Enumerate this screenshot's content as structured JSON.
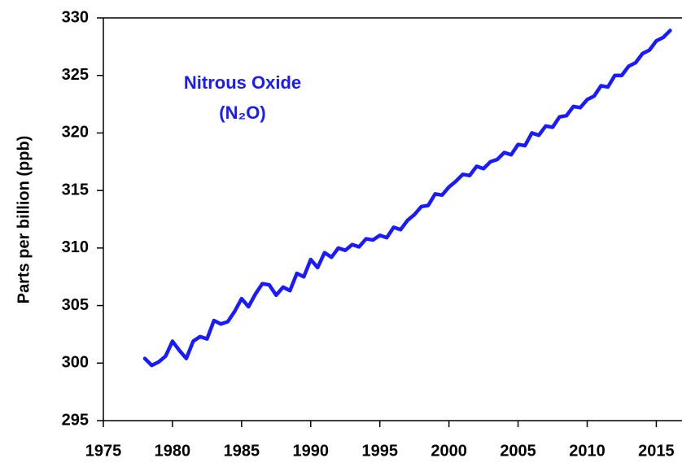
{
  "chart_data": {
    "type": "line",
    "y_label": "Parts per billion (ppb)",
    "annotations": [
      "Nitrous Oxide",
      "(N₂O)"
    ],
    "annotation_color": "#1a1aff",
    "x": [
      1978.0,
      1978.5,
      1979.0,
      1979.5,
      1980.0,
      1980.5,
      1981.0,
      1981.5,
      1982.0,
      1982.5,
      1983.0,
      1983.5,
      1984.0,
      1984.5,
      1985.0,
      1985.5,
      1986.0,
      1986.5,
      1987.0,
      1987.5,
      1988.0,
      1988.5,
      1989.0,
      1989.5,
      1990.0,
      1990.5,
      1991.0,
      1991.5,
      1992.0,
      1992.5,
      1993.0,
      1993.5,
      1994.0,
      1994.5,
      1995.0,
      1995.5,
      1996.0,
      1996.5,
      1997.0,
      1997.5,
      1998.0,
      1998.5,
      1999.0,
      1999.5,
      2000.0,
      2000.5,
      2001.0,
      2001.5,
      2002.0,
      2002.5,
      2003.0,
      2003.5,
      2004.0,
      2004.5,
      2005.0,
      2005.5,
      2006.0,
      2006.5,
      2007.0,
      2007.5,
      2008.0,
      2008.5,
      2009.0,
      2009.5,
      2010.0,
      2010.5,
      2011.0,
      2011.5,
      2012.0,
      2012.5,
      2013.0,
      2013.5,
      2014.0,
      2014.5,
      2015.0,
      2015.5,
      2016.0
    ],
    "series": [
      {
        "name": "N2O",
        "color": "#1a1aff",
        "values": [
          300.4,
          299.8,
          300.1,
          300.6,
          301.9,
          301.1,
          300.4,
          301.9,
          302.3,
          302.1,
          303.7,
          303.4,
          303.6,
          304.5,
          305.6,
          304.9,
          306.0,
          306.9,
          306.8,
          305.9,
          306.6,
          306.3,
          307.8,
          307.5,
          309.0,
          308.3,
          309.6,
          309.2,
          310.0,
          309.8,
          310.3,
          310.1,
          310.8,
          310.7,
          311.1,
          310.9,
          311.8,
          311.6,
          312.4,
          312.9,
          313.6,
          313.7,
          314.7,
          314.6,
          315.3,
          315.8,
          316.4,
          316.3,
          317.1,
          316.9,
          317.5,
          317.7,
          318.3,
          318.1,
          319.0,
          318.9,
          320.0,
          319.8,
          320.6,
          320.5,
          321.4,
          321.5,
          322.3,
          322.2,
          322.9,
          323.2,
          324.1,
          324.0,
          325.0,
          325.0,
          325.8,
          326.1,
          326.9,
          327.2,
          328.0,
          328.3,
          328.9
        ]
      }
    ],
    "xlim": [
      1975,
      2016.8
    ],
    "xticks": [
      1975,
      1980,
      1985,
      1990,
      1995,
      2000,
      2005,
      2010,
      2015
    ],
    "ylim": [
      295,
      330
    ],
    "yticks": [
      295,
      300,
      305,
      310,
      315,
      320,
      325,
      330
    ],
    "grid": false
  }
}
